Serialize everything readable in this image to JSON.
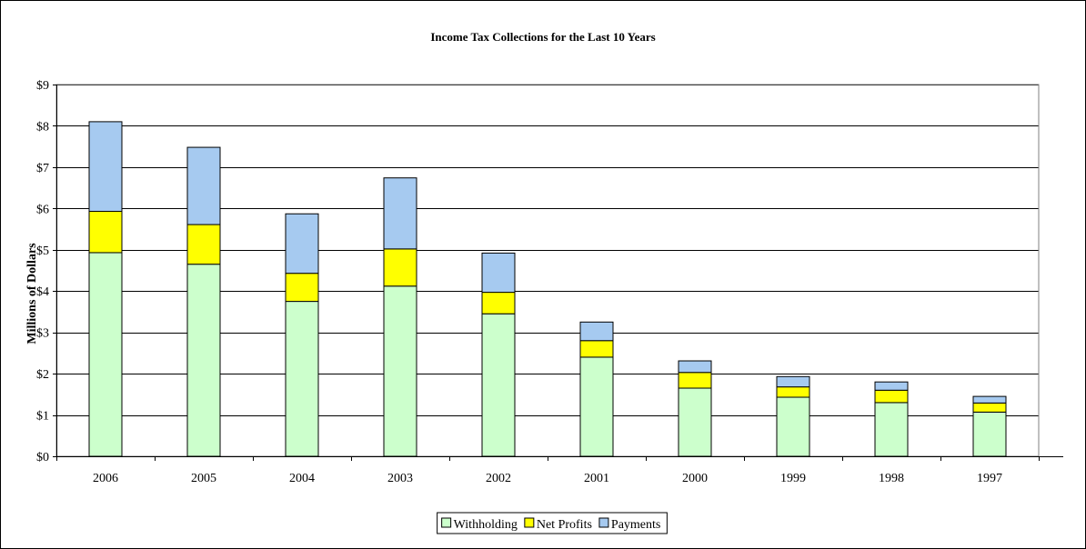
{
  "chart_data": {
    "type": "bar",
    "stacked": true,
    "title": "Income Tax Collections for the Last 10 Years",
    "xlabel": "",
    "ylabel": "Millions of Dollars",
    "ylim": [
      0,
      9
    ],
    "y_ticks": [
      0,
      1,
      2,
      3,
      4,
      5,
      6,
      7,
      8,
      9
    ],
    "y_tick_labels": [
      "$0",
      "$1",
      "$2",
      "$3",
      "$4",
      "$5",
      "$6",
      "$7",
      "$8",
      "$9"
    ],
    "grid": true,
    "legend_position": "bottom",
    "categories": [
      "2006",
      "2005",
      "2004",
      "2003",
      "2002",
      "2001",
      "2000",
      "1999",
      "1998",
      "1997"
    ],
    "series": [
      {
        "name": "Withholding",
        "color": "#CCFFCC",
        "values": [
          4.93,
          4.65,
          3.75,
          4.12,
          3.45,
          2.4,
          1.65,
          1.43,
          1.3,
          1.07
        ]
      },
      {
        "name": "Net Profits",
        "color": "#FFFF00",
        "values": [
          1.0,
          0.96,
          0.68,
          0.9,
          0.52,
          0.4,
          0.38,
          0.25,
          0.3,
          0.22
        ]
      },
      {
        "name": "Payments",
        "color": "#A6CAF0",
        "values": [
          2.17,
          1.87,
          1.44,
          1.72,
          0.95,
          0.45,
          0.28,
          0.25,
          0.2,
          0.16
        ]
      }
    ]
  }
}
